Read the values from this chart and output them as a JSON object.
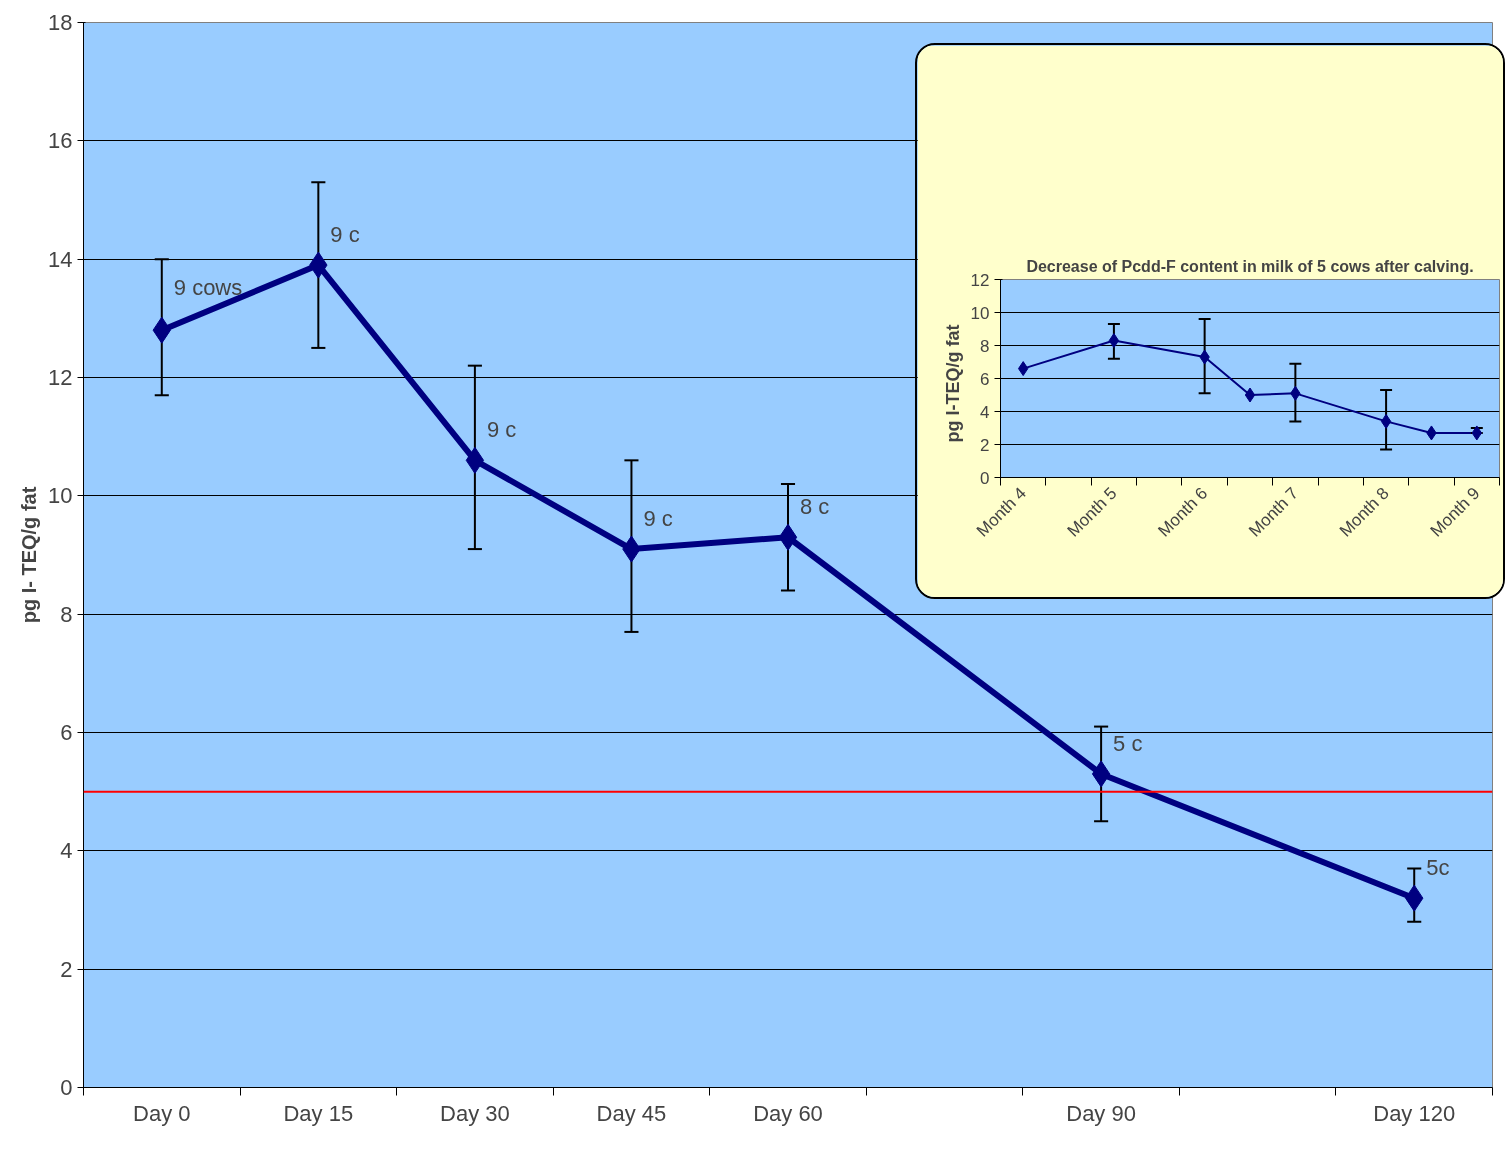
{
  "chart_data": [
    {
      "type": "line",
      "ylabel": "pg I- TEQ/g fat",
      "categories": [
        "Day 0",
        "Day 15",
        "Day 30",
        "Day 45",
        "Day 60",
        null,
        "Day 90",
        null,
        "Day 120"
      ],
      "ylim": [
        0,
        18
      ],
      "yticks": [
        0,
        2,
        4,
        6,
        8,
        10,
        12,
        14,
        16,
        18
      ],
      "grid": "y",
      "marker": "diamond",
      "line_style": "solid",
      "series": [
        {
          "color": "#000080",
          "values": [
            12.8,
            13.9,
            10.6,
            9.1,
            9.3,
            null,
            5.3,
            null,
            3.2
          ],
          "errors": [
            [
              11.7,
              14.0
            ],
            [
              12.5,
              15.3
            ],
            [
              9.1,
              12.2
            ],
            [
              7.7,
              10.6
            ],
            [
              8.4,
              10.2
            ],
            null,
            [
              4.5,
              6.1
            ],
            null,
            [
              2.8,
              3.7
            ]
          ]
        }
      ],
      "ref_lines": [
        {
          "axis": "y",
          "value": 5,
          "color": "#ff0000"
        }
      ],
      "annotations": [
        {
          "text": "9 cows",
          "x": "Day 0",
          "y": 12.8
        },
        {
          "text": "9 c",
          "x": "Day 15",
          "y": 13.9
        },
        {
          "text": "9 c",
          "x": "Day 30",
          "y": 10.6
        },
        {
          "text": "9 c",
          "x": "Day 45",
          "y": 9.1
        },
        {
          "text": "8 c",
          "x": "Day 60",
          "y": 9.3
        },
        {
          "text": "5 c",
          "x": "Day 90",
          "y": 5.3
        },
        {
          "text": "5c",
          "x": "Day 120",
          "y": 3.2
        }
      ]
    },
    {
      "type": "line",
      "title": "Decrease of Pcdd-F content in milk of 5 cows after calving.",
      "ylabel": "pg  I-TEQ/g  fat",
      "categories": [
        "Month 4",
        null,
        "Month 5",
        null,
        "Month 6",
        null,
        "Month 7",
        null,
        "Month 8",
        null,
        "Month 9"
      ],
      "ylim": [
        0,
        12
      ],
      "yticks": [
        0,
        2,
        4,
        6,
        8,
        10,
        12
      ],
      "grid": "y",
      "marker": "diamond",
      "line_style": "solid",
      "series": [
        {
          "color": "#000080",
          "values": [
            6.6,
            null,
            8.3,
            null,
            7.3,
            5.0,
            5.1,
            null,
            3.4,
            2.7,
            2.7
          ],
          "errors": [
            null,
            null,
            [
              7.2,
              9.3
            ],
            null,
            [
              5.1,
              9.6
            ],
            null,
            [
              3.4,
              6.9
            ],
            null,
            [
              1.7,
              5.3
            ],
            null,
            [
              2.7,
              3.0
            ]
          ]
        }
      ]
    }
  ]
}
